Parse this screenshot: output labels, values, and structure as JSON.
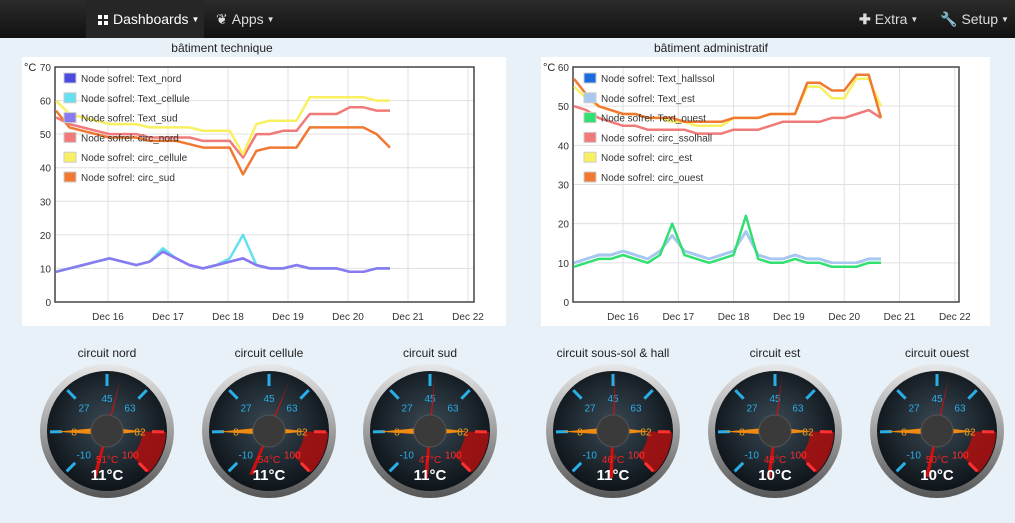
{
  "navbar": {
    "dashboards": "Dashboards",
    "apps": "Apps",
    "extra": "Extra",
    "setup": "Setup",
    "icons": {
      "dashboards": "grid-icon",
      "apps": "leaf-icon",
      "extra": "plus-icon",
      "setup": "wrench-icon"
    }
  },
  "chart_data": [
    {
      "type": "line",
      "title": "bâtiment technique",
      "ylabel": "°C",
      "ylim": [
        0,
        70
      ],
      "yticks": [
        0,
        10,
        20,
        30,
        40,
        50,
        60,
        70
      ],
      "xtick_labels": [
        "Dec 16",
        "Dec 17",
        "Dec 18",
        "Dec 19",
        "Dec 20",
        "Dec 21",
        "Dec 22"
      ],
      "grid": true,
      "legend_position": "top-left",
      "series": [
        {
          "name": "Node sofrel: Text_nord",
          "color": "#4a4ae0",
          "values": [
            9,
            10,
            11,
            12,
            13,
            12,
            11,
            12,
            15,
            13,
            11,
            10,
            11,
            12,
            13,
            11,
            10,
            10,
            11,
            10,
            10,
            10,
            9,
            9,
            10,
            10
          ]
        },
        {
          "name": "Node sofrel: Text_cellule",
          "color": "#66e0f0",
          "values": [
            9,
            10,
            11,
            12,
            13,
            12,
            11,
            12,
            16,
            13,
            11,
            10,
            11,
            13,
            20,
            11,
            10,
            10,
            11,
            10,
            10,
            10,
            9,
            9,
            10,
            10
          ]
        },
        {
          "name": "Node sofrel: Text_sud",
          "color": "#8a7af0",
          "values": [
            9,
            10,
            11,
            12,
            13,
            12,
            11,
            12,
            15,
            13,
            11,
            10,
            11,
            12,
            13,
            11,
            10,
            10,
            11,
            10,
            10,
            10,
            9,
            9,
            10,
            10
          ]
        },
        {
          "name": "Node sofrel: circ_nord",
          "color": "#f07a7a",
          "values": [
            55,
            53,
            52,
            51,
            50,
            50,
            50,
            49,
            49,
            49,
            49,
            48,
            48,
            48,
            43,
            50,
            50,
            51,
            51,
            56,
            56,
            56,
            58,
            58,
            57,
            57
          ]
        },
        {
          "name": "Node sofrel: circ_cellule",
          "color": "#f8f060",
          "values": [
            60,
            56,
            55,
            54,
            53,
            53,
            53,
            52,
            52,
            52,
            52,
            51,
            51,
            51,
            44,
            53,
            54,
            54,
            54,
            61,
            61,
            61,
            61,
            61,
            60,
            60
          ]
        },
        {
          "name": "Node sofrel: circ_sud",
          "color": "#f07830",
          "values": [
            57,
            52,
            51,
            50,
            49,
            49,
            49,
            48,
            48,
            48,
            47,
            46,
            46,
            46,
            38,
            45,
            46,
            46,
            46,
            52,
            52,
            52,
            52,
            52,
            50,
            46
          ]
        }
      ]
    },
    {
      "type": "line",
      "title": "bâtiment administratif",
      "ylabel": "°C",
      "ylim": [
        0,
        60
      ],
      "yticks": [
        0,
        10,
        20,
        30,
        40,
        50,
        60
      ],
      "xtick_labels": [
        "Dec 16",
        "Dec 17",
        "Dec 18",
        "Dec 19",
        "Dec 20",
        "Dec 21",
        "Dec 22"
      ],
      "grid": true,
      "legend_position": "top-left",
      "series": [
        {
          "name": "Node sofrel: Text_hallssol",
          "color": "#1a6ae0",
          "values": [
            10,
            11,
            12,
            12,
            13,
            12,
            11,
            13,
            17,
            13,
            12,
            11,
            12,
            13,
            18,
            12,
            11,
            11,
            12,
            11,
            11,
            10,
            10,
            10,
            11,
            11
          ]
        },
        {
          "name": "Node sofrel: Text_est",
          "color": "#a8c8f0",
          "values": [
            10,
            11,
            12,
            12,
            13,
            12,
            11,
            13,
            17,
            13,
            12,
            11,
            12,
            13,
            18,
            12,
            11,
            11,
            12,
            11,
            11,
            10,
            10,
            10,
            11,
            11
          ]
        },
        {
          "name": "Node sofrel: Text_ouest",
          "color": "#30e070",
          "values": [
            9,
            10,
            11,
            11,
            12,
            11,
            10,
            12,
            20,
            12,
            11,
            10,
            11,
            12,
            22,
            11,
            10,
            10,
            11,
            10,
            10,
            9,
            9,
            9,
            10,
            10
          ]
        },
        {
          "name": "Node sofrel: circ_ssolhall",
          "color": "#f07a7a",
          "values": [
            50,
            49,
            47,
            46,
            45,
            45,
            44,
            44,
            44,
            44,
            43,
            43,
            43,
            44,
            44,
            44,
            45,
            46,
            46,
            46,
            46,
            47,
            47,
            48,
            49,
            47
          ]
        },
        {
          "name": "Node sofrel: circ_est",
          "color": "#f8f060",
          "values": [
            55,
            52,
            50,
            49,
            48,
            48,
            47,
            47,
            46,
            46,
            45,
            45,
            45,
            47,
            47,
            47,
            48,
            48,
            48,
            55,
            55,
            52,
            52,
            57,
            57,
            50
          ]
        },
        {
          "name": "Node sofrel: circ_ouest",
          "color": "#f07830",
          "values": [
            57,
            53,
            50,
            49,
            48,
            48,
            47,
            47,
            47,
            46,
            46,
            46,
            46,
            47,
            47,
            47,
            48,
            48,
            48,
            56,
            56,
            54,
            54,
            58,
            58,
            47
          ]
        }
      ]
    }
  ],
  "gauges": [
    {
      "title": "circuit nord",
      "value": "11°C",
      "setpoint": "51°C",
      "needle": 51
    },
    {
      "title": "circuit cellule",
      "value": "11°C",
      "setpoint": "54°C",
      "needle": 54
    },
    {
      "title": "circuit sud",
      "value": "11°C",
      "setpoint": "47°C",
      "needle": 47
    },
    {
      "title": "circuit sous-sol & hall",
      "value": "11°C",
      "setpoint": "46°C",
      "needle": 46
    },
    {
      "title": "circuit est",
      "value": "10°C",
      "setpoint": "48°C",
      "needle": 48
    },
    {
      "title": "circuit ouest",
      "value": "10°C",
      "setpoint": "50°C",
      "needle": 50
    }
  ],
  "gauge_scale": {
    "labels": [
      "-10",
      "8",
      "27",
      "45",
      "63",
      "82",
      "100"
    ],
    "min": -10,
    "max": 100
  }
}
